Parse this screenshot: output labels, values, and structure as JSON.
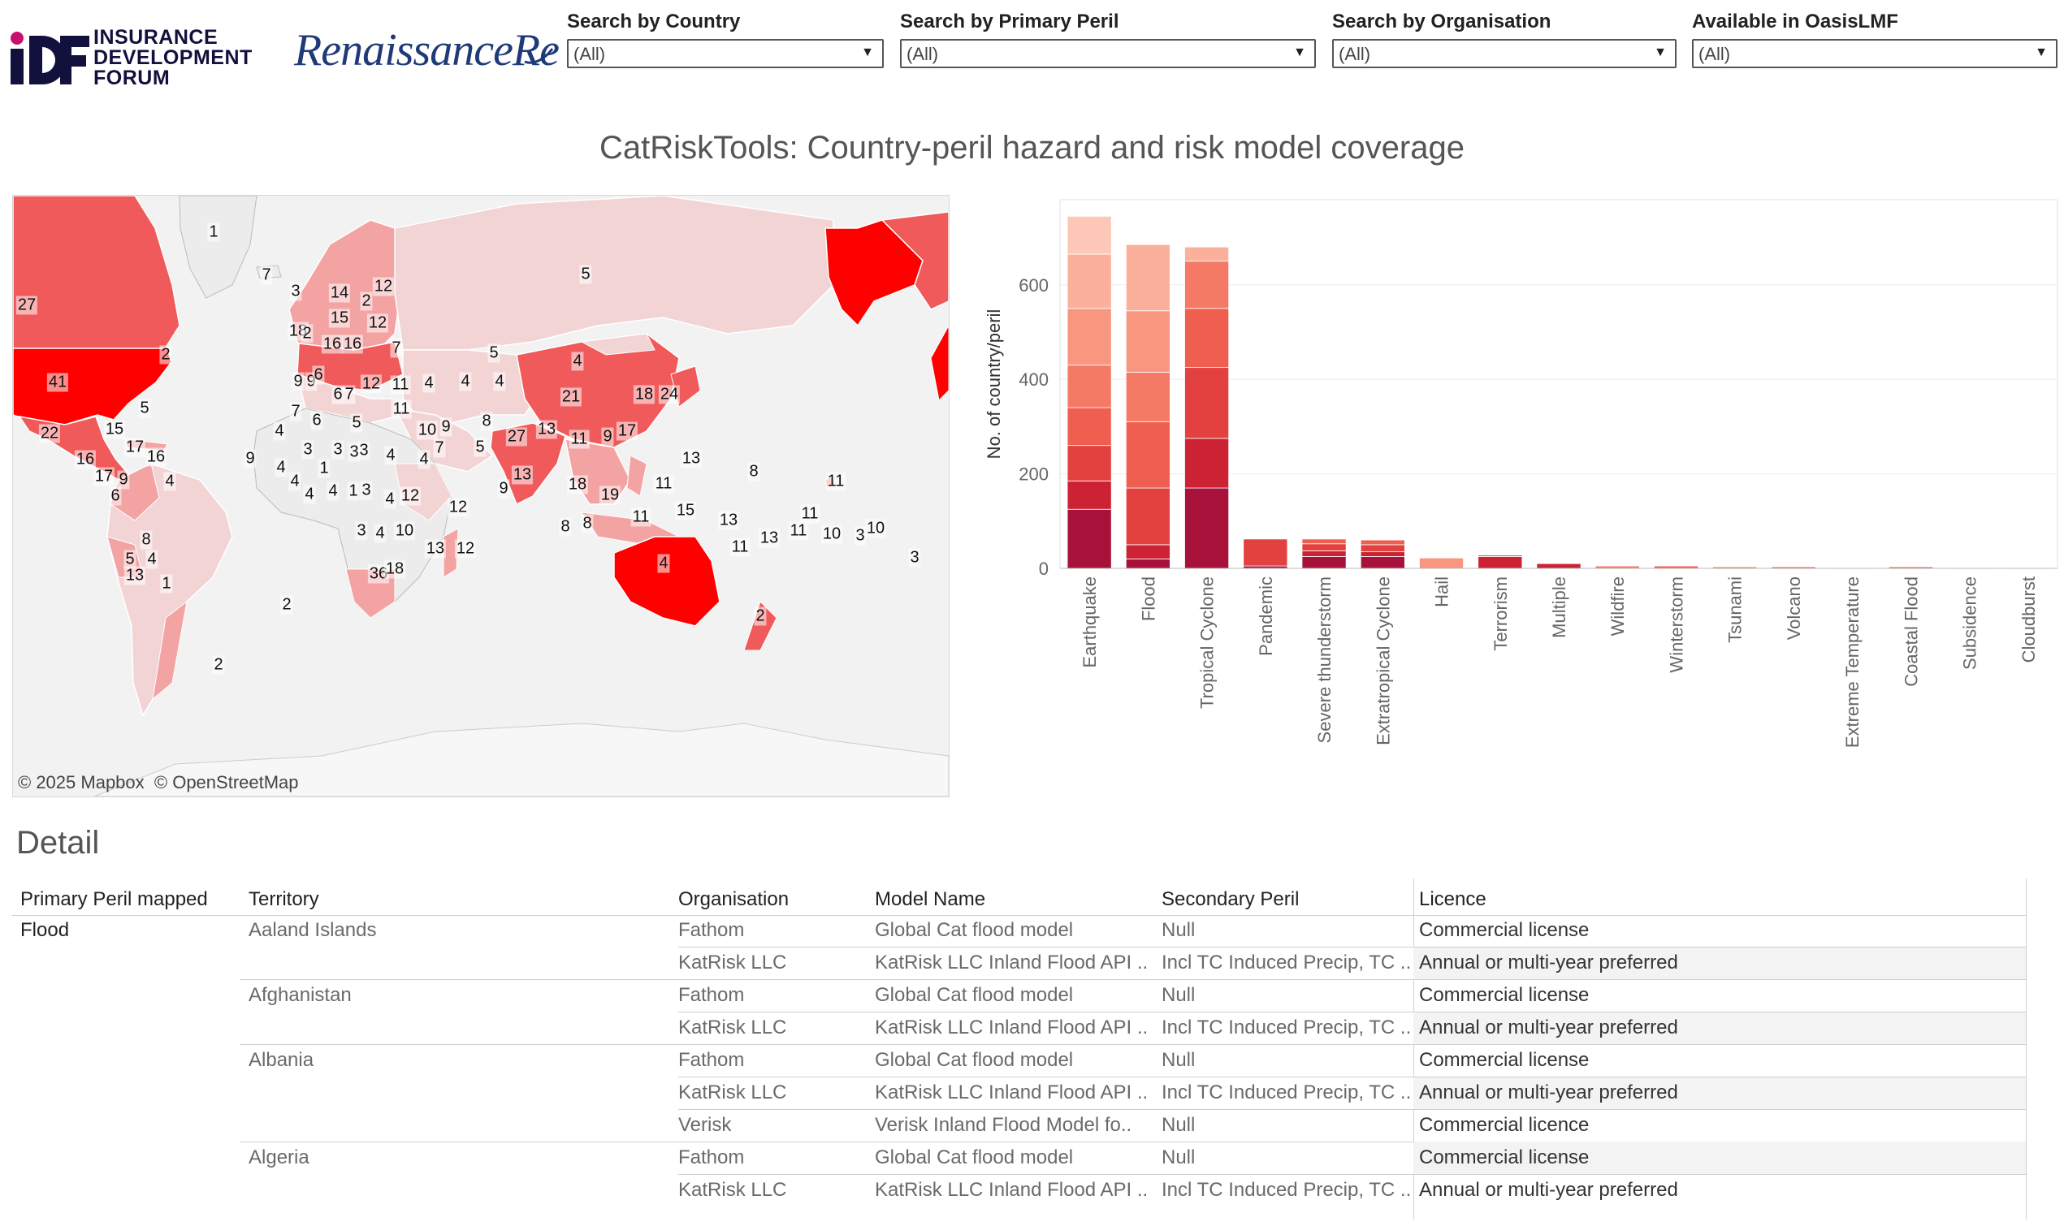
{
  "logos": {
    "idf_lines": [
      "INSURANCE",
      "DEVELOPMENT",
      "FORUM"
    ],
    "renre": "RenaissanceRe"
  },
  "filters": [
    {
      "label": "Search by Country",
      "value": "(All)"
    },
    {
      "label": "Search by Primary Peril",
      "value": "(All)"
    },
    {
      "label": "Search by Organisation",
      "value": "(All)"
    },
    {
      "label": "Available in OasisLMF",
      "value": "(All)"
    }
  ],
  "title": "CatRiskTools: Country-peril hazard and risk model coverage",
  "map": {
    "attribution": [
      "© 2025 Mapbox",
      "© OpenStreetMap"
    ],
    "counts": [
      "1",
      "7",
      "3",
      "14",
      "2",
      "12",
      "27",
      "5",
      "18",
      "2",
      "15",
      "12",
      "16",
      "16",
      "7",
      "5",
      "4",
      "2",
      "41",
      "9",
      "9",
      "6",
      "6",
      "7",
      "12",
      "11",
      "4",
      "4",
      "4",
      "5",
      "7",
      "6",
      "5",
      "11",
      "10",
      "9",
      "8",
      "22",
      "15",
      "17",
      "16",
      "4",
      "3",
      "3",
      "3",
      "4",
      "7",
      "4",
      "27",
      "13",
      "11",
      "9",
      "17",
      "21",
      "18",
      "24",
      "16",
      "9",
      "17",
      "4",
      "4",
      "1",
      "3",
      "4",
      "9",
      "5",
      "13",
      "11",
      "13",
      "8",
      "11",
      "6",
      "4",
      "4",
      "1",
      "3",
      "4",
      "12",
      "12",
      "9",
      "18",
      "19",
      "11",
      "15",
      "13",
      "11",
      "8",
      "8",
      "10",
      "3",
      "3",
      "4",
      "10",
      "13",
      "12",
      "11",
      "13",
      "11",
      "10",
      "3",
      "8",
      "5",
      "4",
      "13",
      "1",
      "36",
      "18",
      "4",
      "2",
      "2",
      "2"
    ],
    "colors": {
      "max": "#ff0000",
      "high": "#f05a5a",
      "mid": "#f4a3a3",
      "low": "#f3d4d4",
      "none": "#ececec"
    }
  },
  "chart_data": {
    "type": "bar",
    "stacked": true,
    "ylabel": "No. of country/peril",
    "ylim": [
      0,
      780
    ],
    "yticks": [
      0,
      200,
      400,
      600
    ],
    "categories": [
      "Earthquake",
      "Flood",
      "Tropical Cyclone",
      "Pandemic",
      "Severe thunderstorm",
      "Extratropical Cyclone",
      "Hail",
      "Terrorism",
      "Multiple",
      "Wildfire",
      "Winterstorm",
      "Tsunami",
      "Volcano",
      "Extreme Temperature",
      "Coastal Flood",
      "Subsidence",
      "Cloudburst"
    ],
    "totals": [
      745,
      685,
      680,
      62,
      62,
      60,
      22,
      28,
      10,
      5,
      5,
      3,
      3,
      1,
      3,
      1,
      1
    ],
    "stack_colors": [
      "#a8123a",
      "#cc2233",
      "#e2413f",
      "#ee5f50",
      "#f47a66",
      "#f9967f",
      "#fbb09c",
      "#fdc8b8"
    ],
    "segments": [
      [
        125,
        60,
        75,
        80,
        90,
        120,
        115,
        80
      ],
      [
        20,
        30,
        120,
        140,
        105,
        130,
        140,
        0
      ],
      [
        170,
        105,
        150,
        125,
        100,
        0,
        30,
        0
      ],
      [
        5,
        0,
        57,
        0,
        0,
        0,
        0,
        0
      ],
      [
        25,
        12,
        15,
        10,
        0,
        0,
        0,
        0
      ],
      [
        25,
        10,
        15,
        10,
        0,
        0,
        0,
        0
      ],
      [
        0,
        0,
        0,
        0,
        0,
        22,
        0,
        0
      ],
      [
        0,
        25,
        3,
        0,
        0,
        0,
        0,
        0
      ],
      [
        0,
        10,
        0,
        0,
        0,
        0,
        0,
        0
      ],
      [
        0,
        0,
        0,
        0,
        5,
        0,
        0,
        0
      ],
      [
        0,
        0,
        0,
        5,
        0,
        0,
        0,
        0
      ],
      [
        0,
        0,
        0,
        3,
        0,
        0,
        0,
        0
      ],
      [
        0,
        0,
        3,
        0,
        0,
        0,
        0,
        0
      ],
      [
        0,
        0,
        0,
        1,
        0,
        0,
        0,
        0
      ],
      [
        0,
        0,
        3,
        0,
        0,
        0,
        0,
        0
      ],
      [
        0,
        0,
        0,
        1,
        0,
        0,
        0,
        0
      ],
      [
        0,
        0,
        0,
        1,
        0,
        0,
        0,
        0
      ]
    ]
  },
  "detail": {
    "title": "Detail",
    "headers": [
      "Primary Peril mapped",
      "Territory",
      "Organisation",
      "Model Name",
      "Secondary Peril",
      "Licence"
    ],
    "peril": "Flood",
    "groups": [
      {
        "territory": "Aaland Islands",
        "rows": [
          {
            "org": "Fathom",
            "model": "Global Cat flood model",
            "secondary": "Null",
            "licence": "Commercial license"
          },
          {
            "org": "KatRisk LLC",
            "model": "KatRisk LLC Inland Flood API ..",
            "secondary": "Incl TC Induced Precip, TC ..",
            "licence": "Annual or multi-year preferred"
          }
        ]
      },
      {
        "territory": "Afghanistan",
        "rows": [
          {
            "org": "Fathom",
            "model": "Global Cat flood model",
            "secondary": "Null",
            "licence": "Commercial license"
          },
          {
            "org": "KatRisk LLC",
            "model": "KatRisk LLC Inland Flood API ..",
            "secondary": "Incl TC Induced Precip, TC ..",
            "licence": "Annual or multi-year preferred"
          }
        ]
      },
      {
        "territory": "Albania",
        "rows": [
          {
            "org": "Fathom",
            "model": "Global Cat flood model",
            "secondary": "Null",
            "licence": "Commercial license"
          },
          {
            "org": "KatRisk LLC",
            "model": "KatRisk LLC Inland Flood API ..",
            "secondary": "Incl TC Induced Precip, TC ..",
            "licence": "Annual or multi-year preferred"
          },
          {
            "org": "Verisk",
            "model": "Verisk Inland Flood Model fo..",
            "secondary": "Null",
            "licence": "Commercial licence"
          }
        ]
      },
      {
        "territory": "Algeria",
        "rows": [
          {
            "org": "Fathom",
            "model": "Global Cat flood model",
            "secondary": "Null",
            "licence": "Commercial license"
          },
          {
            "org": "KatRisk LLC",
            "model": "KatRisk LLC Inland Flood API ..",
            "secondary": "Incl TC Induced Precip, TC ..",
            "licence": "Annual or multi-year preferred"
          }
        ]
      }
    ]
  }
}
